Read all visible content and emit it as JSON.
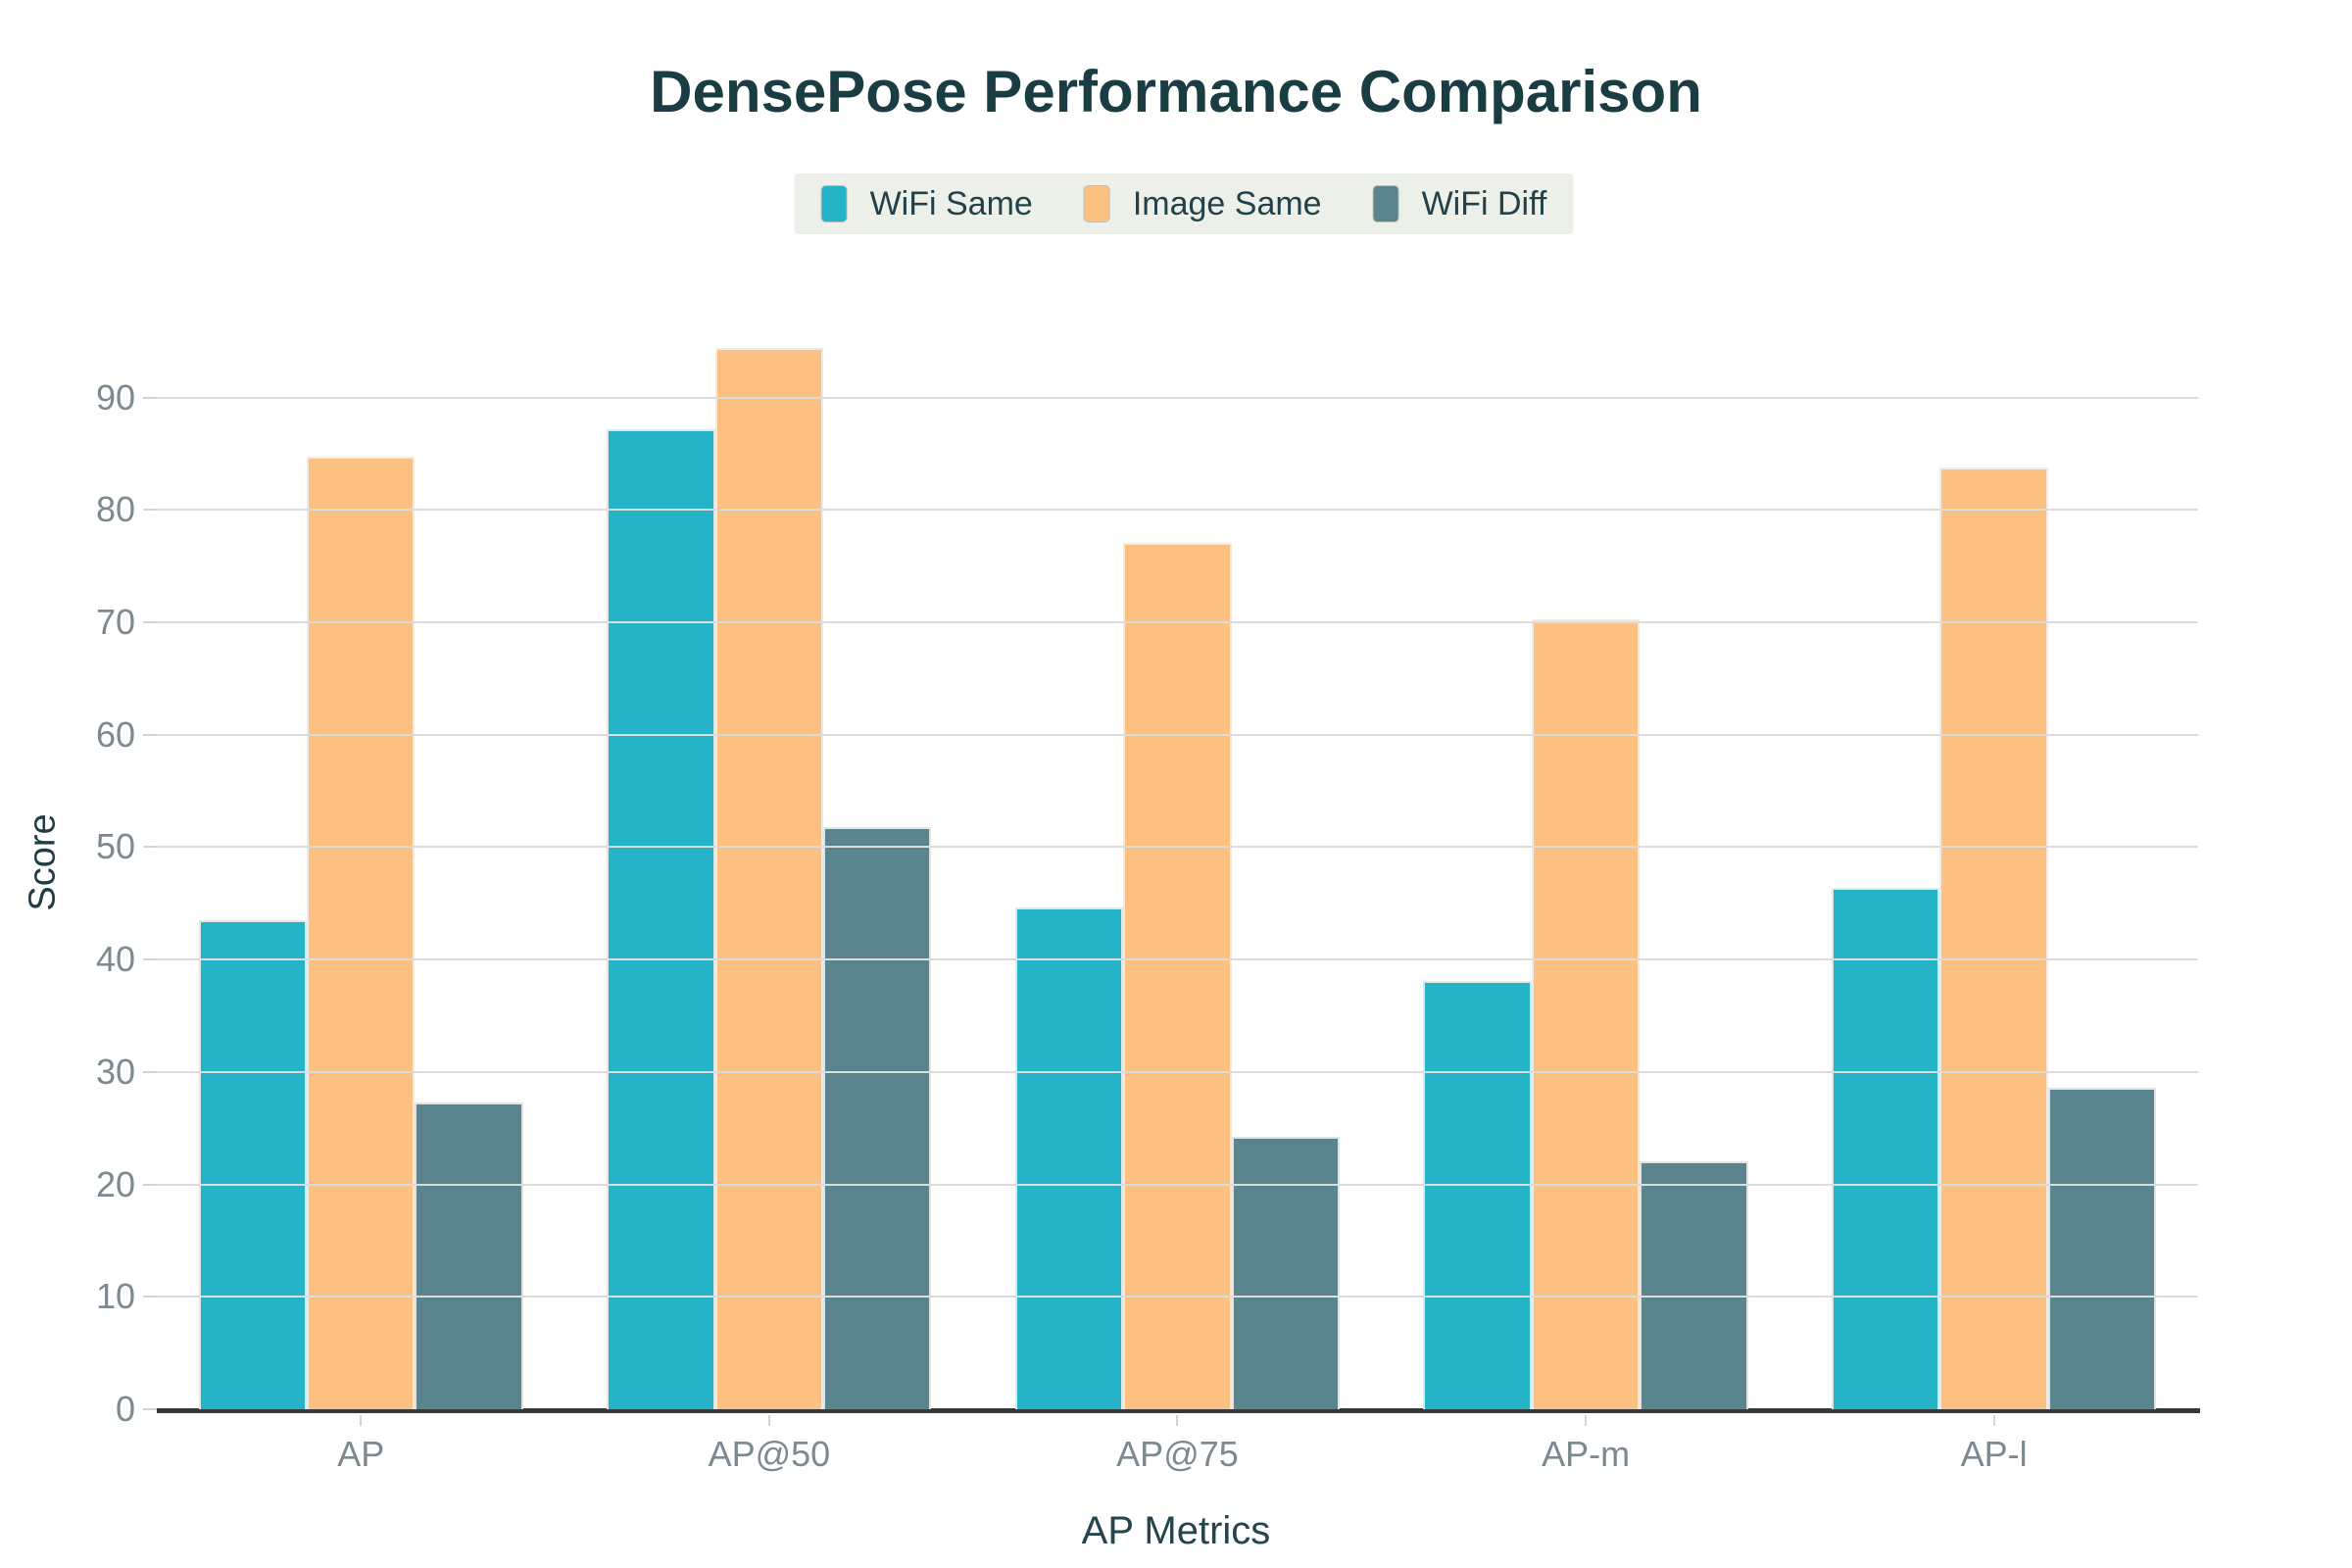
{
  "chart_data": {
    "type": "bar",
    "title": "DensePose Performance Comparison",
    "xlabel": "AP Metrics",
    "ylabel": "Score",
    "categories": [
      "AP",
      "AP@50",
      "AP@75",
      "AP-m",
      "AP-l"
    ],
    "series": [
      {
        "name": "WiFi Same",
        "color": "#25b3c7",
        "values": [
          43.5,
          87.2,
          44.6,
          38.1,
          46.4
        ]
      },
      {
        "name": "Image Same",
        "color": "#fcc083",
        "values": [
          84.7,
          94.4,
          77.1,
          70.3,
          83.8
        ]
      },
      {
        "name": "WiFi Diff",
        "color": "#5b858e",
        "values": [
          27.3,
          51.8,
          24.2,
          22.1,
          28.6
        ]
      }
    ],
    "ylim": [
      0,
      97.2
    ],
    "yticks": [
      0,
      10,
      20,
      30,
      40,
      50,
      60,
      70,
      80,
      90
    ],
    "grid": true,
    "legend_position": "top"
  },
  "colors": {
    "title_text": "#1a3c43",
    "axis_title_text": "#24454d",
    "tick_label_text": "#7b8a90",
    "gridline": "#dcdcdc",
    "axis_line": "#34393c",
    "legend_background": "#edf0e8"
  }
}
